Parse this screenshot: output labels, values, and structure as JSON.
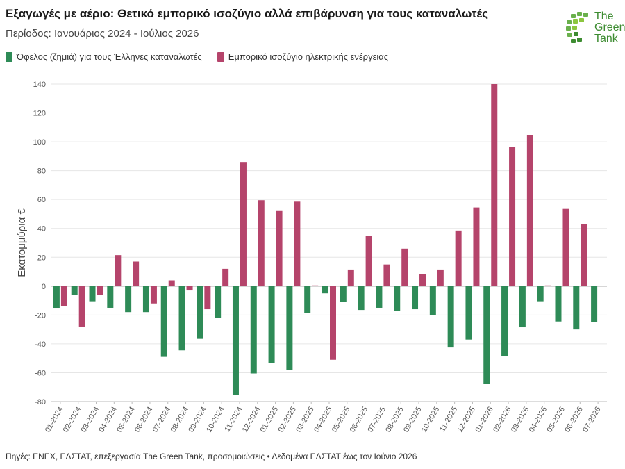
{
  "header": {
    "title": "Εξαγωγές με αέριο: Θετικό εμπορικό ισοζύγιο αλλά επιβάρυνση για τους καταναλωτές",
    "subtitle": "Περίοδος: Ιανουάριος 2024 - Ιούλιος 2026"
  },
  "logo": {
    "line1": "The",
    "line2": "Green",
    "line3": "Tank"
  },
  "legend": {
    "item1": "Όφελος (ζημιά) για τους Έλληνες καταναλωτές",
    "item2": "Εμπορικό ισοζύγιο ηλεκτρικής ενέργειας"
  },
  "footer": {
    "source": "Πηγές: ΕΝΕΧ, ΕΛΣΤΑΤ, επεξεργασία The Green Tank, προσομοιώσεις • Δεδομένα ΕΛΣΤΑΤ έως τον Ιούνιο 2026"
  },
  "colors": {
    "green": "#2e8b57",
    "crimson": "#b5446b",
    "grid": "#e6e6e6",
    "axis": "#bbbbbb"
  },
  "chart_data": {
    "type": "bar",
    "ylabel": "Εκατομμύρια €",
    "ylim": [
      -80,
      140
    ],
    "yticks": [
      -80,
      -60,
      -40,
      -20,
      0,
      20,
      40,
      60,
      80,
      100,
      120,
      140
    ],
    "categories": [
      "01-2024",
      "02-2024",
      "03-2024",
      "04-2024",
      "05-2024",
      "06-2024",
      "07-2024",
      "08-2024",
      "09-2024",
      "10-2024",
      "11-2024",
      "12-2024",
      "01-2025",
      "02-2025",
      "03-2025",
      "04-2025",
      "05-2025",
      "06-2025",
      "07-2025",
      "08-2025",
      "09-2025",
      "10-2025",
      "11-2025",
      "12-2025",
      "01-2026",
      "02-2026",
      "03-2026",
      "04-2026",
      "05-2026",
      "06-2026",
      "07-2026"
    ],
    "series": [
      {
        "name": "Όφελος (ζημιά) για τους Έλληνες καταναλωτές",
        "color": "#2e8b57",
        "values": [
          -15.5,
          -6,
          -10.5,
          -15,
          -18,
          -18,
          -49,
          -44.5,
          -36.5,
          -22,
          -75.5,
          -60.5,
          -53.5,
          -58,
          -18.5,
          -5,
          -11,
          -16.5,
          -15,
          -17,
          -16,
          -20,
          -42.5,
          -37,
          -67.5,
          -48.5,
          -28.5,
          -10.5,
          -24.5,
          -30,
          -25
        ]
      },
      {
        "name": "Εμπορικό ισοζύγιο ηλεκτρικής ενέργειας",
        "color": "#b5446b",
        "values": [
          -14,
          -28,
          -6,
          21.5,
          17,
          -12,
          4,
          -3,
          -16,
          12,
          86,
          59.5,
          52.5,
          58.5,
          0.5,
          -51,
          11.5,
          35,
          15,
          26,
          8.5,
          11.5,
          38.5,
          54.5,
          140,
          96.5,
          104.5,
          0.5,
          53.5,
          43,
          null
        ]
      }
    ]
  }
}
